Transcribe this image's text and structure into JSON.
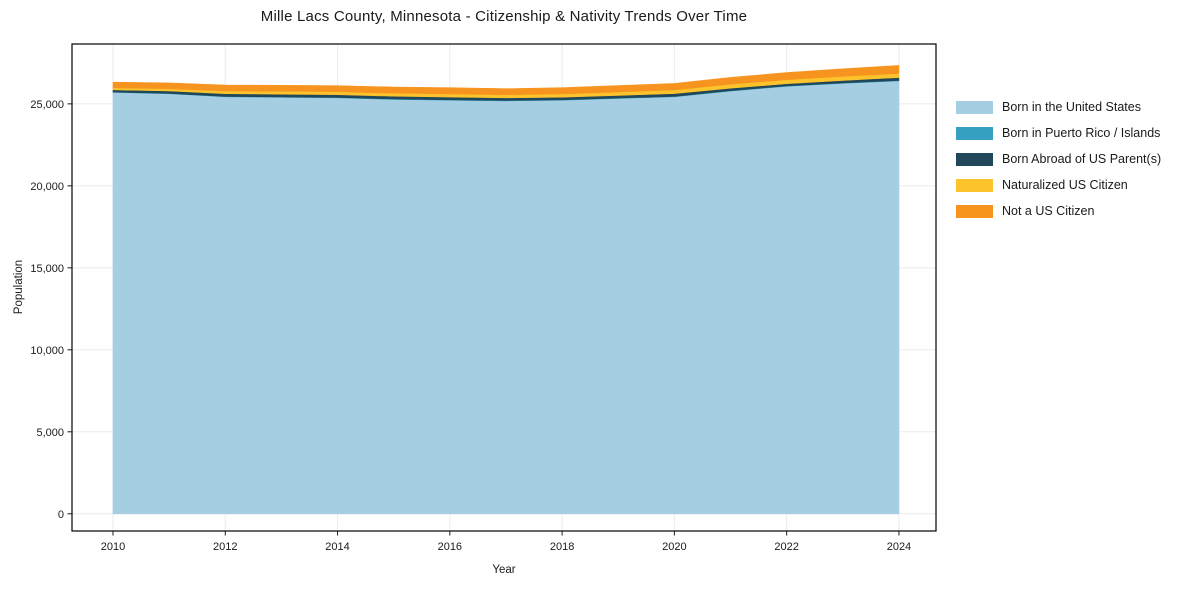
{
  "page": {
    "background": "#ffffff",
    "text_color": "#1a1a1a"
  },
  "chart_data": {
    "type": "area",
    "stacked": true,
    "title": "Mille Lacs County, Minnesota - Citizenship & Nativity Trends Over Time",
    "xlabel": "Year",
    "ylabel": "Population",
    "x": [
      2010,
      2011,
      2012,
      2013,
      2014,
      2015,
      2016,
      2017,
      2018,
      2019,
      2020,
      2021,
      2022,
      2023,
      2024
    ],
    "series": [
      {
        "name": "Born in the United States",
        "color": "#a6cee3",
        "values": [
          25700,
          25620,
          25430,
          25400,
          25370,
          25270,
          25220,
          25180,
          25220,
          25330,
          25430,
          25780,
          26070,
          26250,
          26400
        ]
      },
      {
        "name": "Born in Puerto Rico / Islands",
        "color": "#36a0c3",
        "values": [
          15,
          15,
          20,
          20,
          20,
          25,
          25,
          25,
          25,
          25,
          25,
          25,
          25,
          25,
          25
        ]
      },
      {
        "name": "Born Abroad of US Parent(s)",
        "color": "#21475a",
        "values": [
          140,
          150,
          170,
          170,
          170,
          170,
          170,
          160,
          160,
          160,
          170,
          150,
          130,
          150,
          180
        ]
      },
      {
        "name": "Naturalized US Citizen",
        "color": "#fcc32d",
        "values": [
          120,
          140,
          170,
          180,
          180,
          190,
          190,
          190,
          200,
          210,
          220,
          240,
          250,
          250,
          250
        ]
      },
      {
        "name": "Not a US Citizen",
        "color": "#f79420",
        "values": [
          350,
          350,
          360,
          360,
          370,
          370,
          380,
          370,
          380,
          390,
          400,
          420,
          430,
          460,
          490
        ]
      }
    ],
    "xticks": [
      2010,
      2012,
      2014,
      2016,
      2018,
      2020,
      2022,
      2024
    ],
    "xtick_labels": [
      "2010",
      "2012",
      "2014",
      "2016",
      "2018",
      "2020",
      "2022",
      "2024"
    ],
    "yticks": [
      0,
      5000,
      10000,
      15000,
      20000,
      25000
    ],
    "ytick_labels": [
      "0",
      "5,000",
      "10,000",
      "15,000",
      "20,000",
      "25,000"
    ],
    "xlim": [
      2009.27,
      2024.66
    ],
    "ylim": [
      -1050,
      28650
    ],
    "grid": true,
    "grid_color": "#ebebeb",
    "frame_color": "#000000",
    "tick_color": "#1a1a1a",
    "legend_position": "right"
  }
}
